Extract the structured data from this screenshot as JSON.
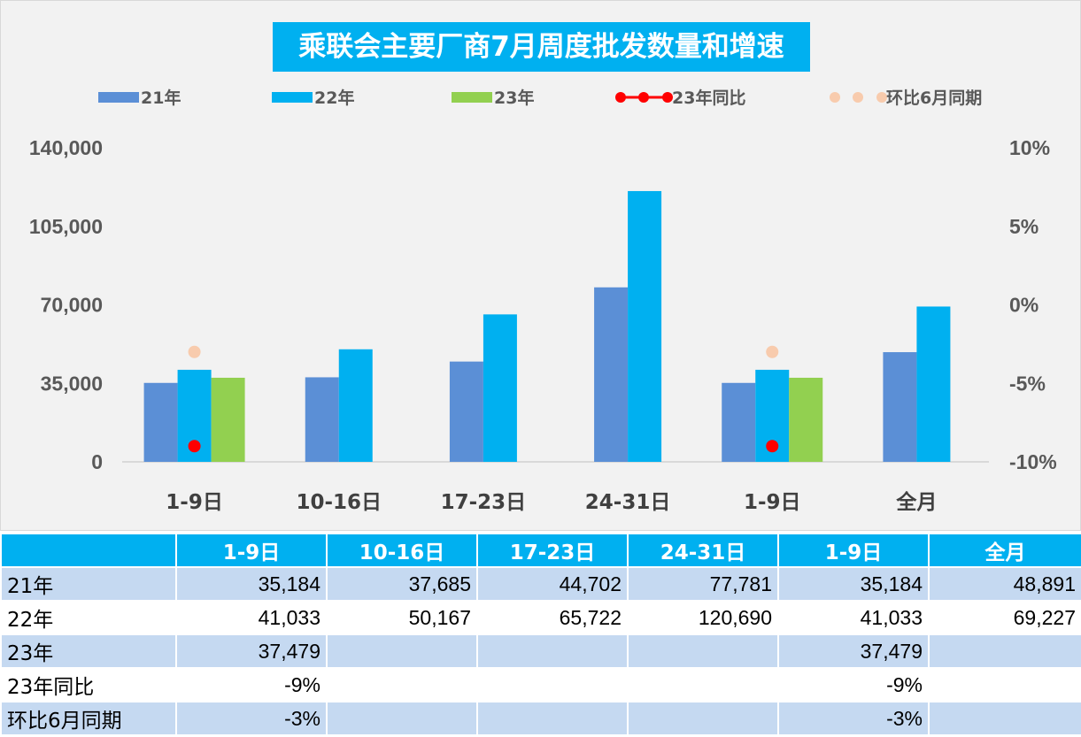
{
  "chart_data": {
    "type": "bar",
    "title": "乘联会主要厂商7月周度批发数量和增速",
    "categories": [
      "1-9日",
      "10-16日",
      "17-23日",
      "24-31日",
      "1-9日",
      "全月"
    ],
    "series": [
      {
        "name": "21年",
        "type": "bar",
        "color": "#5b8fd6",
        "values": [
          35184,
          37685,
          44702,
          77781,
          35184,
          48891
        ]
      },
      {
        "name": "22年",
        "type": "bar",
        "color": "#00b0f0",
        "values": [
          41033,
          50167,
          65722,
          120690,
          41033,
          69227
        ]
      },
      {
        "name": "23年",
        "type": "bar",
        "color": "#92d050",
        "values": [
          37479,
          null,
          null,
          null,
          37479,
          null
        ]
      },
      {
        "name": "23年同比",
        "type": "scatter",
        "axis": "right",
        "color": "#ff0000",
        "values": [
          -9,
          null,
          null,
          null,
          -9,
          null
        ]
      },
      {
        "name": "环比6月同期",
        "type": "scatter",
        "axis": "right",
        "color": "#f8cbad",
        "values": [
          -3,
          null,
          null,
          null,
          -3,
          null
        ]
      }
    ],
    "y_left": {
      "min": 0,
      "max": 140000,
      "ticks": [
        0,
        35000,
        70000,
        105000,
        140000
      ],
      "tick_labels": [
        "0",
        "35,000",
        "70,000",
        "105,000",
        "140,000"
      ]
    },
    "y_right": {
      "min": -10,
      "max": 10,
      "ticks": [
        -10,
        -5,
        0,
        5,
        10
      ],
      "tick_labels": [
        "-10%",
        "-5%",
        "0%",
        "5%",
        "10%"
      ]
    },
    "legend_position": "top",
    "grid": false
  },
  "table": {
    "header": [
      "",
      "1-9日",
      "10-16日",
      "17-23日",
      "24-31日",
      "1-9日",
      "全月"
    ],
    "rows": [
      {
        "label": "21年",
        "cells": [
          "35,184",
          "37,685",
          "44,702",
          "77,781",
          "35,184",
          "48,891"
        ]
      },
      {
        "label": "22年",
        "cells": [
          "41,033",
          "50,167",
          "65,722",
          "120,690",
          "41,033",
          "69,227"
        ]
      },
      {
        "label": "23年",
        "cells": [
          "37,479",
          "",
          "",
          "",
          "37,479",
          ""
        ]
      },
      {
        "label": "23年同比",
        "cells": [
          "-9%",
          "",
          "",
          "",
          "-9%",
          ""
        ]
      },
      {
        "label": "环比6月同期",
        "cells": [
          "-3%",
          "",
          "",
          "",
          "-3%",
          ""
        ]
      }
    ]
  }
}
